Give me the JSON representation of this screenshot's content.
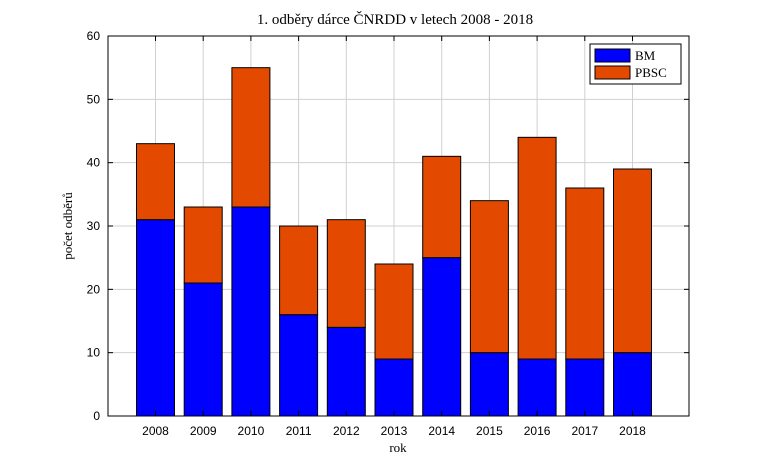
{
  "chart_data": {
    "type": "bar",
    "stacked": true,
    "title": "1. odběry dárce ČNRDD v letech 2008 - 2018",
    "xlabel": "rok",
    "ylabel": "počet odběrů",
    "categories": [
      "2008",
      "2009",
      "2010",
      "2011",
      "2012",
      "2013",
      "2014",
      "2015",
      "2016",
      "2017",
      "2018"
    ],
    "series": [
      {
        "name": "BM",
        "color": "#0000ff",
        "values": [
          31,
          21,
          33,
          16,
          14,
          9,
          25,
          10,
          9,
          9,
          10
        ]
      },
      {
        "name": "PBSC",
        "color": "#e34a00",
        "values": [
          12,
          12,
          22,
          14,
          17,
          15,
          16,
          24,
          35,
          27,
          29
        ]
      }
    ],
    "ylim": [
      0,
      60
    ],
    "yticks": [
      0,
      10,
      20,
      30,
      40,
      50,
      60
    ],
    "grid": true,
    "legend_position": "top-right"
  }
}
